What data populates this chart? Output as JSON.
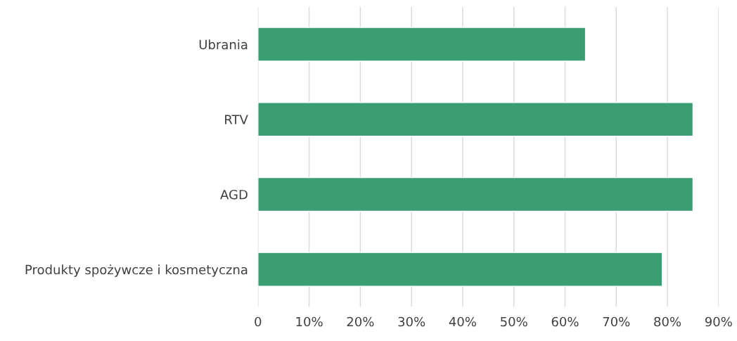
{
  "chart_data": {
    "type": "bar",
    "orientation": "horizontal",
    "categories": [
      "Ubrania",
      "RTV",
      "AGD",
      "Produkty spożywcze i kosmetyczna"
    ],
    "values": [
      64,
      85,
      85,
      79
    ],
    "color": "#3a9e72",
    "xlim": [
      0,
      90
    ],
    "xticks": [
      {
        "value": 0,
        "label": "0"
      },
      {
        "value": 10,
        "label": "10%"
      },
      {
        "value": 20,
        "label": "20%"
      },
      {
        "value": 30,
        "label": "30%"
      },
      {
        "value": 40,
        "label": "40%"
      },
      {
        "value": 50,
        "label": "50%"
      },
      {
        "value": 60,
        "label": "60%"
      },
      {
        "value": 70,
        "label": "70%"
      },
      {
        "value": 80,
        "label": "80%"
      },
      {
        "value": 90,
        "label": "90%"
      }
    ],
    "grid": "x"
  }
}
